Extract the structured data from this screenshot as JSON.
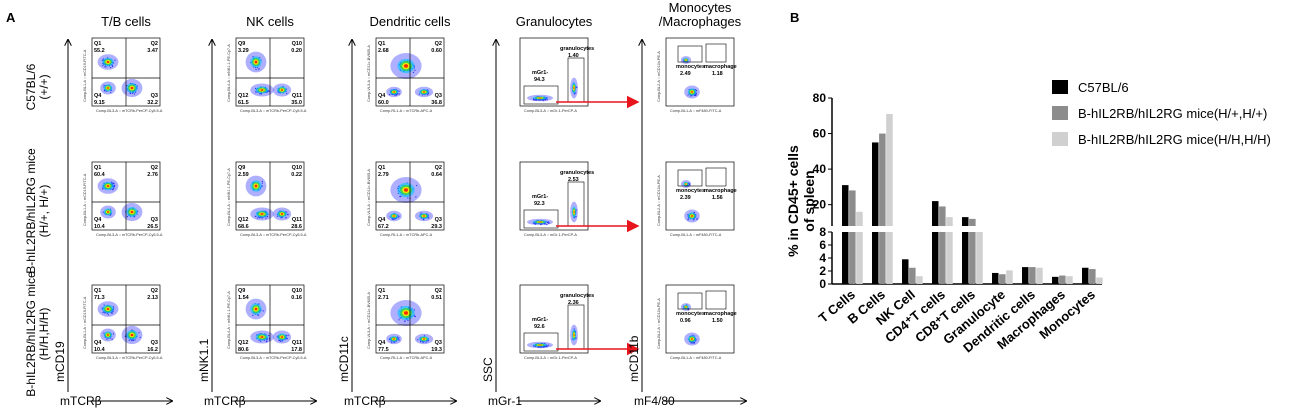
{
  "panel_a_label": "A",
  "panel_b_label": "B",
  "columns": [
    {
      "title": "T/B cells",
      "xaxis": "mTCRβ",
      "yaxis": "mCD19",
      "quadrant": true,
      "tiny_x": "Comp-BL3-A :: mTCRb-PerCP-Cy5.5-A",
      "tiny_y": "Comp-BL1-A :: mCD19-FITC-A",
      "cells": [
        {
          "q1": "Q1",
          "v1": "55.2",
          "q2": "Q2",
          "v2": "3.47",
          "q3": "Q3",
          "v3": "32.2",
          "q4": "Q4",
          "v4": "9.15"
        },
        {
          "q1": "Q1",
          "v1": "60.4",
          "q2": "Q2",
          "v2": "2.76",
          "q3": "Q3",
          "v3": "26.5",
          "q4": "Q4",
          "v4": "10.4"
        },
        {
          "q1": "Q1",
          "v1": "71.3",
          "q2": "Q2",
          "v2": "2.13",
          "q3": "Q3",
          "v3": "16.2",
          "q4": "Q4",
          "v4": "10.4"
        }
      ]
    },
    {
      "title": "NK cells",
      "xaxis": "mTCRβ",
      "yaxis": "mNK1.1",
      "quadrant": true,
      "tiny_x": "Comp-BL3-A :: mTCRb-PerCP-Cy5.5-A",
      "tiny_y": "Comp-BL4-A :: mNK1.1-PE-Cy7-A",
      "cells": [
        {
          "q1": "Q9",
          "v1": "3.29",
          "q2": "Q10",
          "v2": "0.20",
          "q3": "Q11",
          "v3": "35.0",
          "q4": "Q12",
          "v4": "61.5"
        },
        {
          "q1": "Q9",
          "v1": "2.59",
          "q2": "Q10",
          "v2": "0.22",
          "q3": "Q11",
          "v3": "28.6",
          "q4": "Q12",
          "v4": "68.6"
        },
        {
          "q1": "Q9",
          "v1": "1.54",
          "q2": "Q10",
          "v2": "0.16",
          "q3": "Q11",
          "v3": "17.8",
          "q4": "Q12",
          "v4": "80.6"
        }
      ]
    },
    {
      "title": "Dendritic cells",
      "xaxis": "mTCRβ",
      "yaxis": "mCD11c",
      "quadrant": true,
      "tiny_x": "Comp-RL1-A :: mTCRb-APC-A",
      "tiny_y": "Comp-VL3-A :: mCD11c-BV605-A",
      "cells": [
        {
          "q1": "Q1",
          "v1": "2.68",
          "q2": "Q2",
          "v2": "0.60",
          "q3": "Q3",
          "v3": "36.8",
          "q4": "Q4",
          "v4": "60.0"
        },
        {
          "q1": "Q1",
          "v1": "2.79",
          "q2": "Q2",
          "v2": "0.64",
          "q3": "Q3",
          "v3": "29.3",
          "q4": "Q4",
          "v4": "67.2"
        },
        {
          "q1": "Q1",
          "v1": "2.71",
          "q2": "Q2",
          "v2": "0.51",
          "q3": "Q3",
          "v3": "19.3",
          "q4": "Q4",
          "v4": "77.5"
        }
      ]
    },
    {
      "title": "Granulocytes",
      "xaxis": "mGr-1",
      "yaxis": "SSC",
      "quadrant": false,
      "tiny_x": "Comp-BL3-A :: mGr-1-PerCP-A",
      "cells": [
        {
          "gate_name": "granulocytes",
          "gate_value": "1.40",
          "pop_name": "mGr1-",
          "pop_value": "94.3"
        },
        {
          "gate_name": "granulocytes",
          "gate_value": "2.53",
          "pop_name": "mGr1-",
          "pop_value": "92.3"
        },
        {
          "gate_name": "granulocytes",
          "gate_value": "2.36",
          "pop_name": "mGr1-",
          "pop_value": "92.6"
        }
      ]
    },
    {
      "title": "Monocytes\n/Macrophages",
      "xaxis": "mF4/80",
      "yaxis": "mCD11b",
      "quadrant": false,
      "tiny_x": "Comp-BL1-A :: mF480-FITC-A",
      "tiny_y": "Comp-BL2-A :: mCD11b-PE-A",
      "cells": [
        {
          "mono_name": "monocytes",
          "mono_value": "2.49",
          "mac_name": "macrophage",
          "mac_value": "1.18"
        },
        {
          "mono_name": "monocytes",
          "mono_value": "2.39",
          "mac_name": "macrophage",
          "mac_value": "1.56"
        },
        {
          "mono_name": "monocytes",
          "mono_value": "0.96",
          "mac_name": "macrophage",
          "mac_value": "1.50"
        }
      ]
    }
  ],
  "rows": [
    {
      "line1": "C57BL/6",
      "line2": "(+/+)"
    },
    {
      "line1": "B-hIL2RB/hIL2RG mice",
      "line2": "(H/+, H/+)"
    },
    {
      "line1": "B-hIL2RB/hIL2RG mice",
      "line2": "(H/H,H/H)"
    }
  ],
  "colors": {
    "arrow": "#e8141c",
    "bar_dark": "#000000",
    "bar_mid": "#8c8c8c",
    "bar_light": "#d0d0d0"
  },
  "chart_data": {
    "type": "bar",
    "ylabel_line1": "% in CD45+ cells",
    "ylabel_line2": "of spleen",
    "categories": [
      "T Cells",
      "B Cells",
      "NK Cell",
      "CD4⁺T cells",
      "CD8⁺T cells",
      "Granulocyte",
      "Dendritic cells",
      "Macrophages",
      "Monocytes"
    ],
    "series": [
      {
        "name": "C57BL/6",
        "values": [
          31,
          55,
          3.8,
          22,
          13,
          1.7,
          2.6,
          1.1,
          2.5
        ]
      },
      {
        "name": "B-hIL2RB/hIL2RG mice(H/+,H/+)",
        "values": [
          28,
          60,
          2.5,
          19,
          12,
          1.5,
          2.6,
          1.3,
          2.3
        ]
      },
      {
        "name": "B-hIL2RB/hIL2RG mice(H/H,H/H)",
        "values": [
          16,
          71,
          1.2,
          13,
          8,
          2.1,
          2.5,
          1.2,
          1.0
        ]
      }
    ],
    "axis_break": {
      "lower": [
        0,
        8
      ],
      "upper": [
        8,
        80
      ]
    },
    "yticks_lower": [
      "0",
      "2",
      "4",
      "6",
      "8"
    ],
    "yticks_upper": [
      "20",
      "40",
      "60",
      "80"
    ],
    "legend_position": "top-right"
  }
}
